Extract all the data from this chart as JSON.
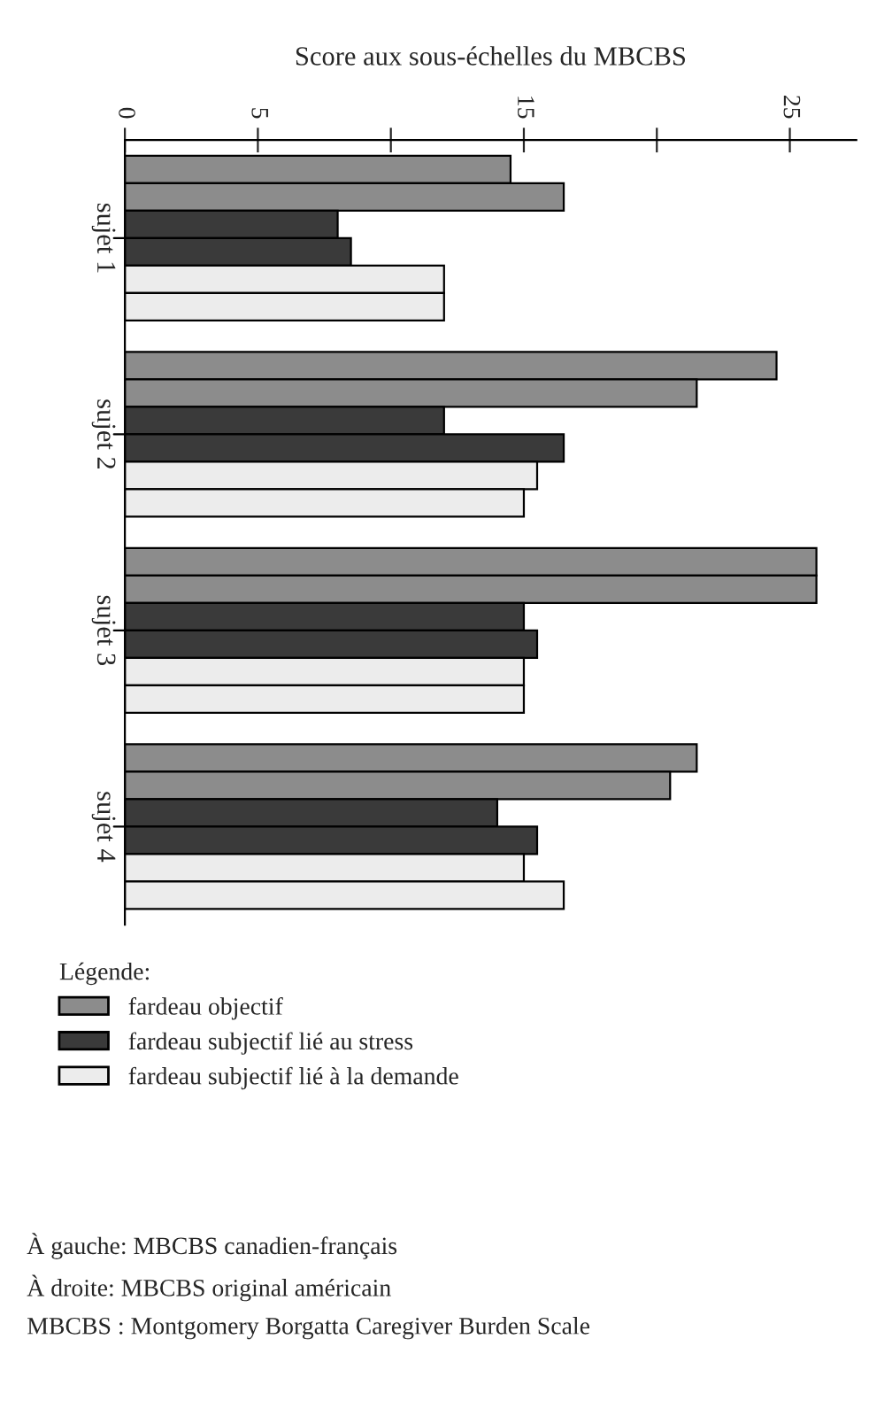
{
  "chart_data": {
    "type": "bar",
    "orientation": "horizontal",
    "xlabel": "Score aux sous-échelles du MBCBS",
    "categories": [
      "sujet 1",
      "sujet 2",
      "sujet 3",
      "sujet 4"
    ],
    "series": [
      {
        "name": "fardeau objectif",
        "color": "#8c8c8c",
        "values": [
          14.5,
          24.5,
          26,
          21.5
        ]
      },
      {
        "color": "#8c8c8c",
        "values": [
          16.5,
          21.5,
          26,
          20.5
        ]
      },
      {
        "name": "fardeau subjectif lié au stress",
        "color": "#3a3a3a",
        "values": [
          8,
          12,
          15,
          14
        ]
      },
      {
        "color": "#3a3a3a",
        "values": [
          8.5,
          16.5,
          15.5,
          15.5
        ]
      },
      {
        "name": "fardeau subjectif lié à la demande",
        "color": "#ececec",
        "values": [
          12,
          15.5,
          15,
          15
        ]
      },
      {
        "color": "#ececec",
        "values": [
          12,
          15,
          15,
          16.5
        ]
      }
    ],
    "xlim": [
      0,
      27.5
    ],
    "xticks": [
      0,
      5,
      {
        "value": 10,
        "label": null
      },
      15,
      {
        "value": 20,
        "label": null
      },
      25
    ],
    "legend_title": "Légende:",
    "legend": "bottom left",
    "grid": false,
    "annotations": [
      "À gauche: MBCBS canadien-français",
      "À droite: MBCBS original américain",
      "MBCBS : Montgomery Borgatta Caregiver Burden Scale"
    ]
  }
}
